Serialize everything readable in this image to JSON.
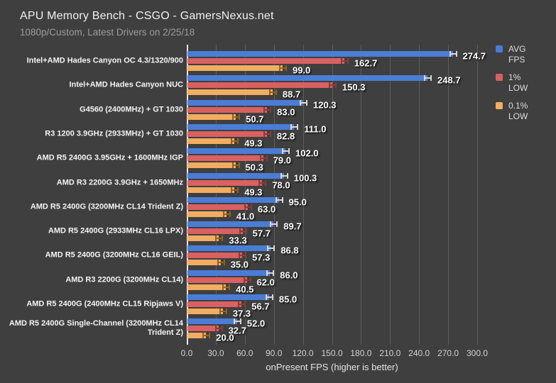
{
  "chart_data": {
    "type": "bar",
    "orientation": "horizontal",
    "title": "APU Memory Bench - CSGO - GamersNexus.net",
    "subtitle": "1080p/Custom, Latest Drivers on 2/25/18",
    "xlabel": "onPresent FPS (higher is better)",
    "xlim": [
      0,
      300
    ],
    "xtick_step": 30,
    "xtick_labels": [
      "0.0",
      "30.0",
      "60.0",
      "90.0",
      "120.0",
      "150.0",
      "180.0",
      "210.0",
      "240.0",
      "270.0",
      "300.0"
    ],
    "grid": true,
    "legend_position": "right",
    "value_label_format": "one-decimal",
    "categories": [
      "Intel+AMD Hades Canyon OC 4.3/1320/900",
      "Intel+AMD Hades Canyon NUC",
      "G4560 (2400MHz) + GT 1030",
      "R3 1200 3.9GHz (2933MHz) + GT 1030",
      "AMD R5 2400G 3.95GHz + 1600MHz IGP",
      "AMD R3 2200G 3.9GHz + 1650MHz",
      "AMD R5 2400G (3200MHz CL14 Trident Z)",
      "AMD R5 2400G (2933MHz CL16 LPX)",
      "AMD R5 2400G (3200MHz CL16 GEIL)",
      "AMD R3 2200G (3200MHz CL14)",
      "AMD R5 2400G (2400MHz CL15 Ripjaws V)",
      "AMD R5 2400G Single-Channel (3200MHz CL14 Trident Z)"
    ],
    "series": [
      {
        "name": "AVG FPS",
        "legend_label": "AVG\nFPS",
        "key": "avg-fps",
        "color": "#4a7dd6",
        "whisker_color": "#d8d8d8",
        "values": [
          274.7,
          248.7,
          120.3,
          111.0,
          102.0,
          100.3,
          95.0,
          89.7,
          86.8,
          86.0,
          85.0,
          52.0
        ]
      },
      {
        "name": "1% LOW",
        "legend_label": "1%\nLOW",
        "key": "1pct-low",
        "color": "#d96161",
        "whisker_color": "#8d3a3a",
        "values": [
          162.7,
          150.3,
          83.0,
          82.8,
          79.0,
          78.0,
          63.0,
          57.7,
          57.3,
          62.0,
          56.7,
          32.7
        ]
      },
      {
        "name": "0.1% LOW",
        "legend_label": "0.1%\nLOW",
        "key": "01pct-low",
        "color": "#f2ad61",
        "whisker_color": "#96621f",
        "values": [
          99.0,
          88.7,
          50.7,
          49.3,
          50.3,
          49.3,
          41.0,
          33.3,
          35.0,
          40.5,
          37.3,
          20.0
        ]
      }
    ]
  },
  "colors": {
    "background": "#3f3f3f",
    "gridline": "#5d5d5d",
    "axis_line": "#e8e8e8",
    "title_text": "#f1f1f1",
    "subtitle_text": "#9c9c9c",
    "category_text": "#f5f5f5",
    "value_text": "#ffffff",
    "tick_text": "#d2d2d2"
  }
}
